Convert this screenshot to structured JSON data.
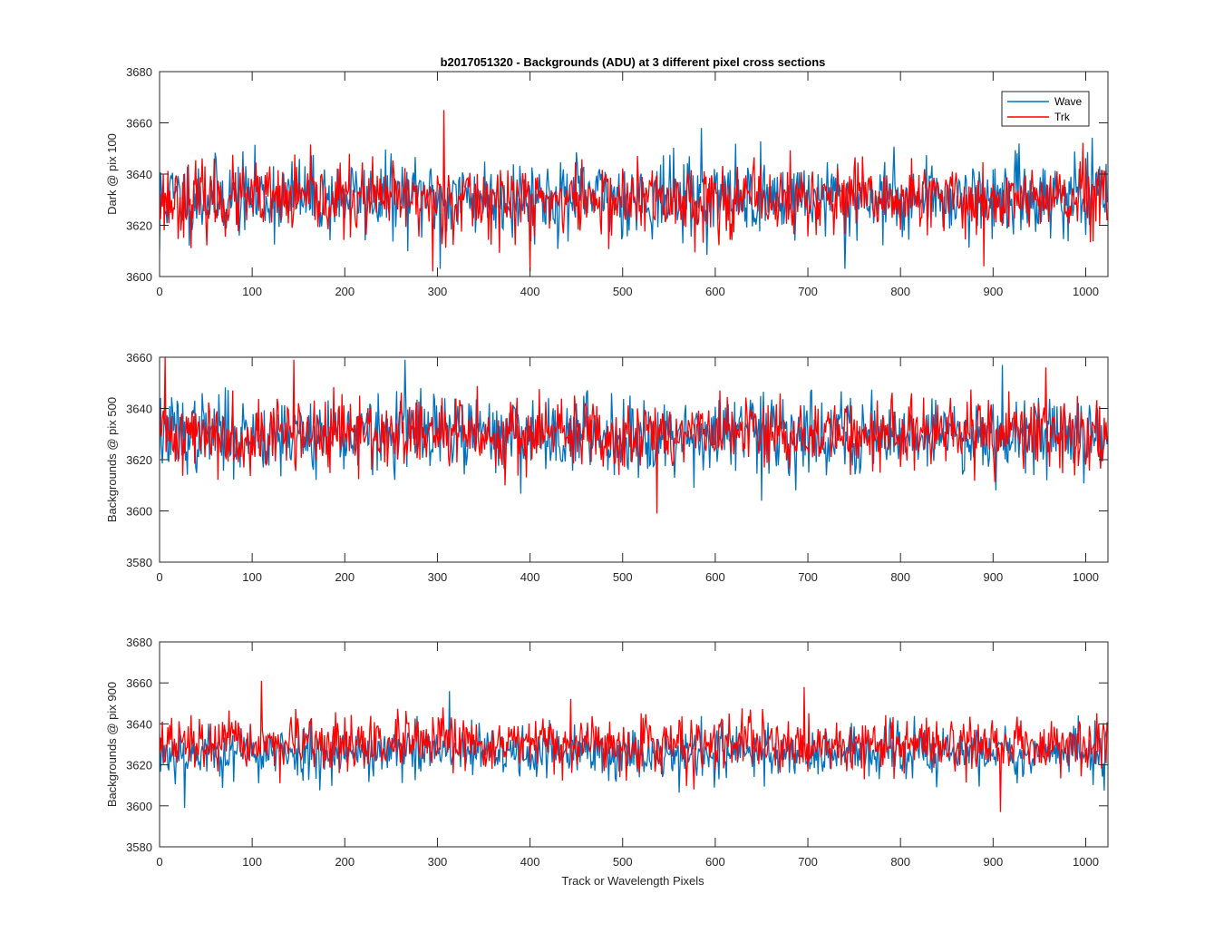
{
  "figure": {
    "title": "b2017051320 - Backgrounds (ADU) at 3 different pixel cross sections",
    "xlabel": "Track or Wavelength Pixels"
  },
  "legend": {
    "entries": [
      {
        "name": "Wave",
        "color": "#0072BD"
      },
      {
        "name": "Trk",
        "color": "#FF0000"
      }
    ],
    "placement": "top-right of first panel"
  },
  "chart_data": [
    {
      "type": "line",
      "ylabel": "Dark @ pix 100",
      "xlim": [
        0,
        1024
      ],
      "ylim": [
        3600,
        3680
      ],
      "xticks": [
        0,
        100,
        200,
        300,
        400,
        500,
        600,
        700,
        800,
        900,
        1000
      ],
      "yticks": [
        3600,
        3620,
        3640,
        3660,
        3680
      ],
      "grid": false,
      "n_points": 1024,
      "series": [
        {
          "name": "Wave",
          "color": "#0072BD",
          "mean": 3631,
          "spread": 7.5,
          "seed": 11,
          "features": [
            [
              0,
              3610
            ],
            [
              303,
              3603
            ],
            [
              585,
              3658
            ],
            [
              740,
              3603
            ]
          ]
        },
        {
          "name": "Trk",
          "color": "#FF0000",
          "mean": 3630,
          "spread": 7,
          "seed": 23,
          "features": [
            [
              307,
              3665
            ],
            [
              295,
              3602
            ],
            [
              400,
              3602
            ],
            [
              890,
              3604
            ]
          ]
        }
      ]
    },
    {
      "type": "line",
      "ylabel": "Backgrounds @ pix 500",
      "xlim": [
        0,
        1024
      ],
      "ylim": [
        3580,
        3660
      ],
      "xticks": [
        0,
        100,
        200,
        300,
        400,
        500,
        600,
        700,
        800,
        900,
        1000
      ],
      "yticks": [
        3580,
        3600,
        3620,
        3640,
        3660
      ],
      "grid": false,
      "n_points": 1024,
      "series": [
        {
          "name": "Wave",
          "color": "#0072BD",
          "mean": 3630,
          "spread": 7.5,
          "seed": 37,
          "features": [
            [
              265,
              3659
            ],
            [
              650,
              3604
            ],
            [
              910,
              3657
            ]
          ]
        },
        {
          "name": "Trk",
          "color": "#FF0000",
          "mean": 3630,
          "spread": 7,
          "seed": 41,
          "features": [
            [
              6,
              3660
            ],
            [
              145,
              3659
            ],
            [
              537,
              3599
            ],
            [
              957,
              3656
            ]
          ]
        }
      ]
    },
    {
      "type": "line",
      "ylabel": "Backgrounds @ pix 900",
      "xlim": [
        0,
        1024
      ],
      "ylim": [
        3580,
        3680
      ],
      "xticks": [
        0,
        100,
        200,
        300,
        400,
        500,
        600,
        700,
        800,
        900,
        1000
      ],
      "yticks": [
        3580,
        3600,
        3620,
        3640,
        3660,
        3680
      ],
      "grid": false,
      "n_points": 1024,
      "series": [
        {
          "name": "Wave",
          "color": "#0072BD",
          "mean": 3626,
          "spread": 6.5,
          "seed": 53,
          "features": [
            [
              27,
              3599
            ],
            [
              313,
              3656
            ]
          ]
        },
        {
          "name": "Trk",
          "color": "#FF0000",
          "mean": 3630,
          "spread": 6.5,
          "seed": 67,
          "features": [
            [
              110,
              3661
            ],
            [
              908,
              3597
            ],
            [
              696,
              3658
            ]
          ]
        }
      ]
    }
  ]
}
